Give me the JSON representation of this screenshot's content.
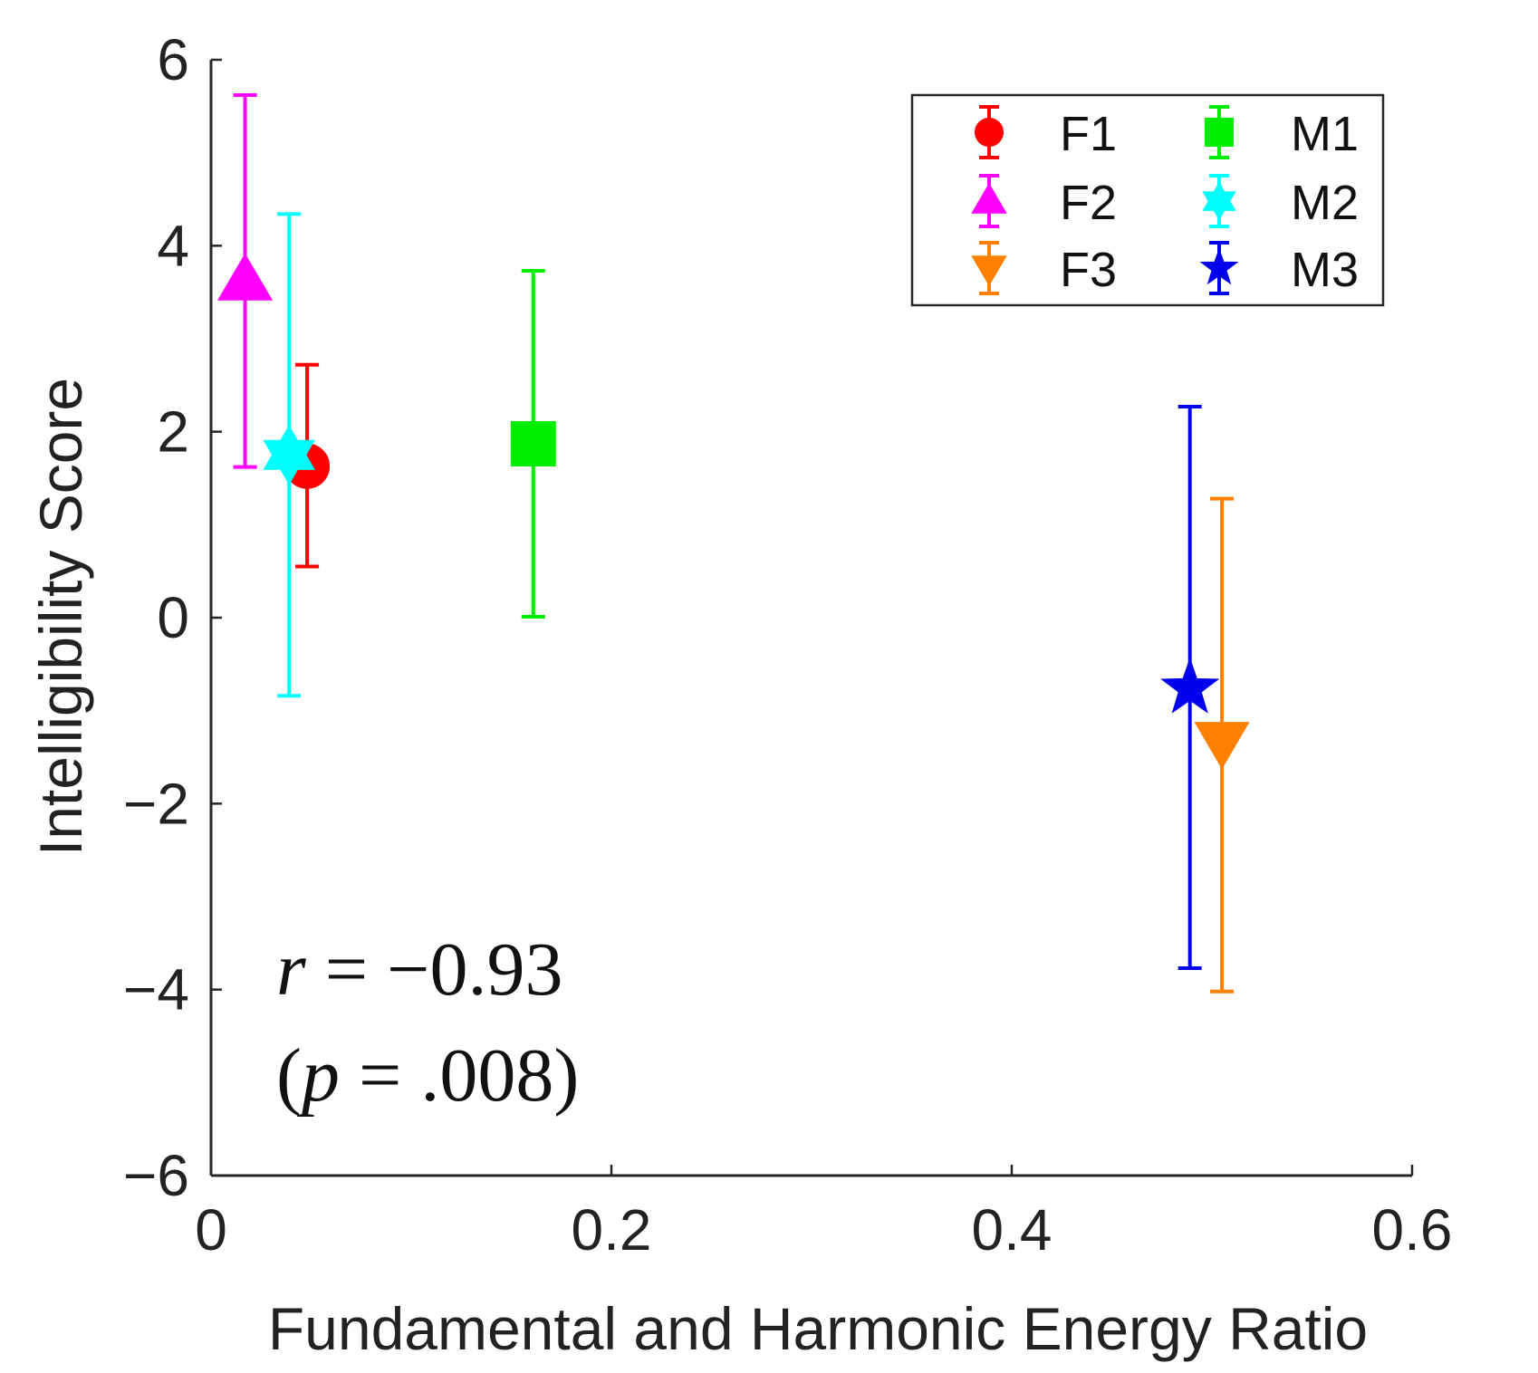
{
  "chart_data": {
    "type": "scatter",
    "title": "",
    "xlabel": "Fundamental and Harmonic Energy Ratio",
    "ylabel": "Intelligibility Score",
    "xlim": [
      0,
      0.6
    ],
    "ylim": [
      -6,
      6
    ],
    "xticks": [
      0,
      0.2,
      0.4,
      0.6
    ],
    "xtick_labels": [
      "0",
      "0.2",
      "0.4",
      "0.6"
    ],
    "yticks": [
      -6,
      -4,
      -2,
      0,
      2,
      4,
      6
    ],
    "ytick_labels": [
      "−6",
      "−4",
      "−2",
      "0",
      "2",
      "4",
      "6"
    ],
    "grid": false,
    "legend_position": "top-right",
    "series": [
      {
        "name": "F1",
        "color": "#ff0000",
        "marker": "circle",
        "x": 0.048,
        "y": 1.63,
        "err_low": 0.55,
        "err_high": 2.72
      },
      {
        "name": "F2",
        "color": "#ff00ff",
        "marker": "triangle-up",
        "x": 0.017,
        "y": 3.62,
        "err_low": 1.62,
        "err_high": 5.62
      },
      {
        "name": "F3",
        "color": "#ff8000",
        "marker": "triangle-down",
        "x": 0.505,
        "y": -1.33,
        "err_low": -4.02,
        "err_high": 1.28
      },
      {
        "name": "M1",
        "color": "#00ee00",
        "marker": "square",
        "x": 0.161,
        "y": 1.87,
        "err_low": 0.01,
        "err_high": 3.73
      },
      {
        "name": "M2",
        "color": "#00ffff",
        "marker": "hexagram",
        "x": 0.039,
        "y": 1.75,
        "err_low": -0.84,
        "err_high": 4.34
      },
      {
        "name": "M3",
        "color": "#0000ee",
        "marker": "pentagram",
        "x": 0.489,
        "y": -0.76,
        "err_low": -3.77,
        "err_high": 2.27
      }
    ],
    "annotations": [
      "r = −0.93",
      "(p = .008)"
    ]
  }
}
